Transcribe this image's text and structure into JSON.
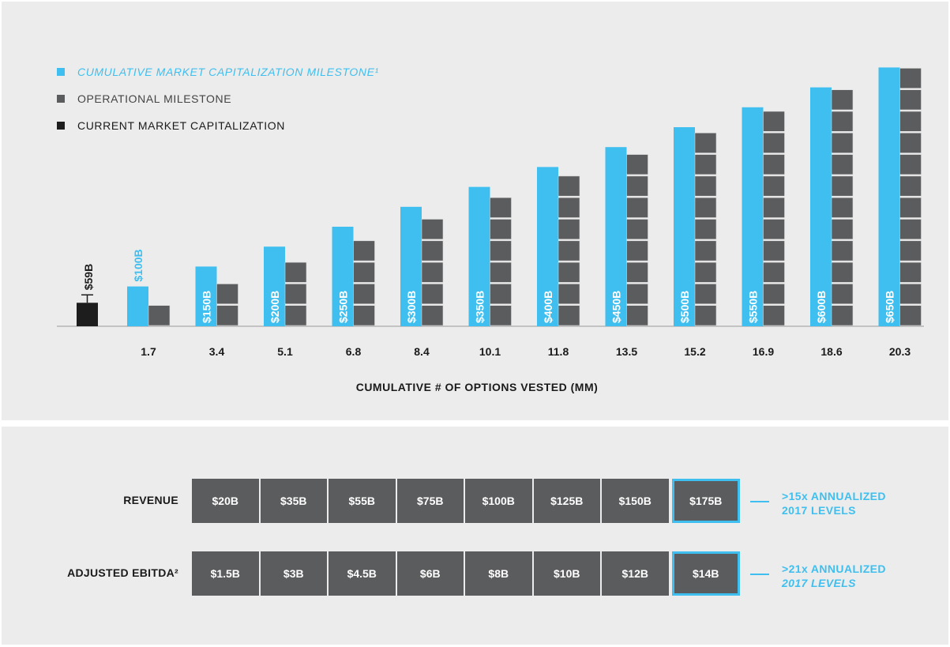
{
  "colors": {
    "milestone": "#3fbfef",
    "operational": "#5b5c5e",
    "current": "#1d1d1d",
    "cell_divider": "#ececec"
  },
  "legend": [
    {
      "label": "CUMULATIVE MARKET CAPITALIZATION MILESTONE¹",
      "color": "#3fbfef",
      "italic": true
    },
    {
      "label": "OPERATIONAL MILESTONE",
      "color": "#5b5c5e",
      "italic": false
    },
    {
      "label": "CURRENT MARKET CAPITALIZATION",
      "color": "#1d1d1d",
      "italic": false
    }
  ],
  "chart_data": {
    "type": "bar",
    "title": "",
    "xlabel": "CUMULATIVE # OF OPTIONS VESTED (MM)",
    "ylabel": "",
    "current_market_cap": {
      "label": "$59B",
      "value": 59
    },
    "categories": [
      "1.7",
      "3.4",
      "5.1",
      "6.8",
      "8.4",
      "10.1",
      "11.8",
      "13.5",
      "15.2",
      "16.9",
      "18.6",
      "20.3"
    ],
    "series": [
      {
        "name": "CUMULATIVE MARKET CAPITALIZATION MILESTONE",
        "values": [
          100,
          150,
          200,
          250,
          300,
          350,
          400,
          450,
          500,
          550,
          600,
          650
        ],
        "labels": [
          "$100B",
          "$150B",
          "$200B",
          "$250B",
          "$300B",
          "$350B",
          "$400B",
          "$450B",
          "$500B",
          "$550B",
          "$600B",
          "$650B"
        ]
      },
      {
        "name": "OPERATIONAL MILESTONE",
        "values": [
          1,
          2,
          3,
          4,
          5,
          6,
          7,
          8,
          9,
          10,
          11,
          12
        ]
      }
    ],
    "ylim": [
      0,
      650
    ]
  },
  "table": {
    "rows": [
      {
        "label": "REVENUE",
        "values": [
          "$20B",
          "$35B",
          "$55B",
          "$75B",
          "$100B",
          "$125B",
          "$150B",
          "$175B"
        ],
        "note_line1": ">15x ANNUALIZED",
        "note_line2": "2017 LEVELS"
      },
      {
        "label": "ADJUSTED EBITDA²",
        "values": [
          "$1.5B",
          "$3B",
          "$4.5B",
          "$6B",
          "$8B",
          "$10B",
          "$12B",
          "$14B"
        ],
        "note_line1": ">21x ANNUALIZED",
        "note_line2": "2017 LEVELS"
      }
    ]
  }
}
